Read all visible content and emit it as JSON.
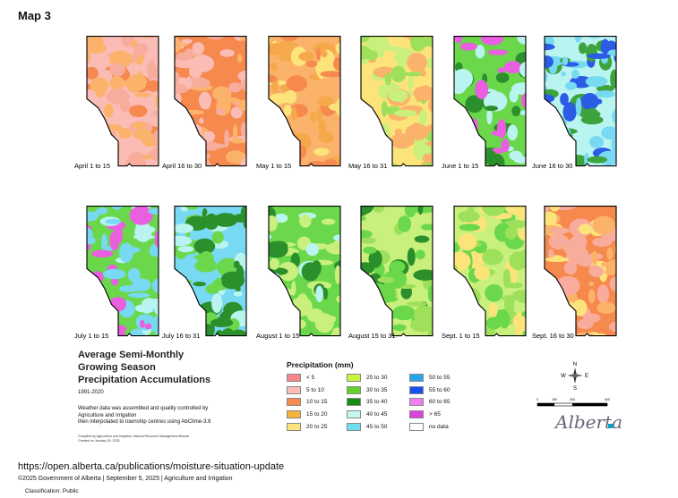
{
  "page": {
    "title": "Map 3",
    "url": "https://open.alberta.ca/publications/moisture-situation-update",
    "footer": "©2025 Government of Alberta | September 5, 2025 | Agriculture and Irrigation",
    "classification": "Classification: Public"
  },
  "maps": [
    {
      "label": "April 1 to 15",
      "palette": [
        "#fbbcb6",
        "#f8ad9c",
        "#f6894e",
        "#fbb36b"
      ]
    },
    {
      "label": "April 16 to 30",
      "palette": [
        "#f6894e",
        "#fbb36b",
        "#fbbcb6",
        "#f8ad9c"
      ]
    },
    {
      "label": "May 1 to 15",
      "palette": [
        "#fbb36b",
        "#f6a94a",
        "#f6894e",
        "#fde47a"
      ]
    },
    {
      "label": "May 16 to 31",
      "palette": [
        "#fde47a",
        "#c9f07d",
        "#9fe05a",
        "#fbb36b"
      ]
    },
    {
      "label": "June 1 to 15",
      "palette": [
        "#6bd84c",
        "#2b8f2b",
        "#baf4f0",
        "#ea5ee0"
      ]
    },
    {
      "label": "June 16 to 30",
      "palette": [
        "#baf4f0",
        "#77d9f2",
        "#2a5ce6",
        "#3da43d"
      ]
    },
    {
      "label": "July 1 to 15",
      "palette": [
        "#6bd84c",
        "#77d9f2",
        "#baf4f0",
        "#ea5ee0"
      ]
    },
    {
      "label": "July 16 to 31",
      "palette": [
        "#77d9f2",
        "#baf4f0",
        "#6bd84c",
        "#2b8f2b"
      ]
    },
    {
      "label": "August 1 to 15",
      "palette": [
        "#6bd84c",
        "#2b8f2b",
        "#c9f07d",
        "#baf4f0"
      ]
    },
    {
      "label": "August 15 to 31",
      "palette": [
        "#c9f07d",
        "#6bd84c",
        "#9fe05a",
        "#2b8f2b"
      ]
    },
    {
      "label": "Sept. 1 to 15",
      "palette": [
        "#c9f07d",
        "#fde47a",
        "#9fe05a",
        "#6bd84c"
      ]
    },
    {
      "label": "Sept. 16 to 30",
      "palette": [
        "#f6894e",
        "#fbb36b",
        "#f8ad9c",
        "#fde47a"
      ]
    }
  ],
  "info": {
    "heading_lines": [
      "Average Semi-Monthly",
      "Growing Season",
      "Precipitation Accumulations"
    ],
    "period": "1991-2020",
    "desc_lines": [
      "Weather data was assembled and quality controlled by",
      "Agriculture and Irrigation",
      "then interpolated to township centres using AbClime-3.6"
    ],
    "compiled_lines": [
      "Compiled by Agriculture and Irrigation, Natural Resource Management Branch",
      "Created on January 15, 2025"
    ]
  },
  "legend": {
    "title": "Precipitation (mm)",
    "items": [
      {
        "label": "< 5",
        "color": "#f4878a"
      },
      {
        "label": "5 to 10",
        "color": "#fbbcb6"
      },
      {
        "label": "10 to 15",
        "color": "#f6894e"
      },
      {
        "label": "15 to 20",
        "color": "#f8b33a"
      },
      {
        "label": "20 to 25",
        "color": "#fde47a"
      },
      {
        "label": "25 to 30",
        "color": "#c9f53d"
      },
      {
        "label": "30 to 35",
        "color": "#63d32c"
      },
      {
        "label": "35 to 40",
        "color": "#158a15"
      },
      {
        "label": "40 to 45",
        "color": "#c4f7ef"
      },
      {
        "label": "45 to 50",
        "color": "#6fe0ee"
      },
      {
        "label": "50 to 55",
        "color": "#27a6ea"
      },
      {
        "label": "55 to 60",
        "color": "#1a4ff0"
      },
      {
        "label": "60 to 65",
        "color": "#f07ff0"
      },
      {
        "label": "> 65",
        "color": "#dc42dc"
      },
      {
        "label": "no data",
        "color": "#ffffff"
      }
    ]
  },
  "compass": {
    "n": "N",
    "s": "S",
    "e": "E",
    "w": "W"
  },
  "scale_ticks": [
    "0",
    "150",
    "300",
    "600"
  ],
  "logo_text": "Alberta",
  "logo_color": "#00a3c4"
}
